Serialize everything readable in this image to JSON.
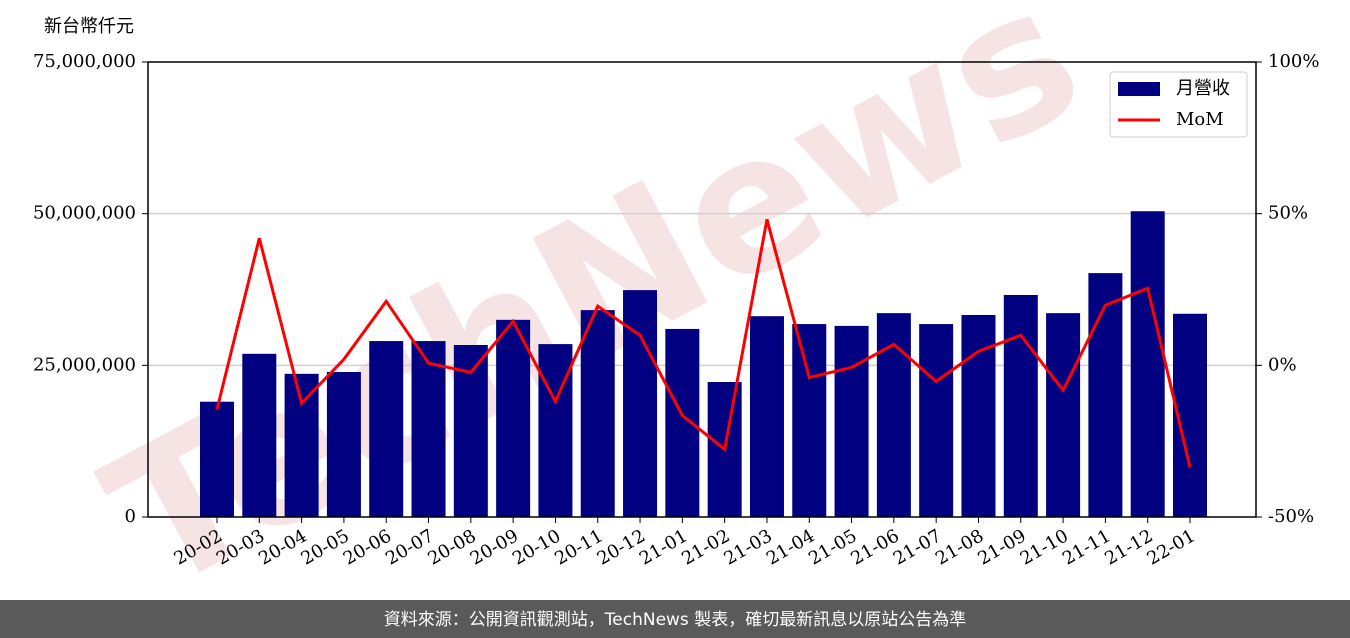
{
  "chart_data": {
    "type": "bar",
    "y_label": "新台幣仟元",
    "watermark": "TechNews",
    "footer": "資料來源：公開資訊觀測站，TechNews 製表，確切最新訊息以原站公告為準",
    "categories": [
      "20-02",
      "20-03",
      "20-04",
      "20-05",
      "20-06",
      "20-07",
      "20-08",
      "20-09",
      "20-10",
      "20-11",
      "20-12",
      "21-01",
      "21-02",
      "21-03",
      "21-04",
      "21-05",
      "21-06",
      "21-07",
      "21-08",
      "21-09",
      "21-10",
      "21-11",
      "21-12",
      "22-01"
    ],
    "series": [
      {
        "name": "月營收",
        "type": "bar",
        "color": "#000080",
        "values": [
          19000000,
          26900000,
          23600000,
          23900000,
          29000000,
          29000000,
          28350000,
          32500000,
          28500000,
          34100000,
          37400000,
          31000000,
          22250000,
          33100000,
          31800000,
          31500000,
          33600000,
          31800000,
          33300000,
          36600000,
          33600000,
          40200000,
          50400000,
          33500000
        ]
      },
      {
        "name": "MoM",
        "type": "line",
        "axis": "y2",
        "color": "#ff0000",
        "values": [
          -14.5,
          41.9,
          -12.5,
          2,
          21.1,
          0.7,
          -2.3,
          14.5,
          -11.9,
          19.5,
          9.9,
          -16.5,
          -27.7,
          48.1,
          -4,
          -0.7,
          6.9,
          -5.3,
          4.6,
          9.9,
          -8.2,
          19.8,
          25.4,
          -33.6
        ]
      }
    ],
    "ylim": [
      0,
      75000000
    ],
    "yticks": [
      0,
      {
        "value": 25000000,
        "label": "25,000,000"
      },
      {
        "value": 50000000,
        "label": "50,000,000"
      },
      {
        "value": 75000000,
        "label": "75,000,000"
      }
    ],
    "y2lim": [
      -50,
      100
    ],
    "y2ticks": [
      {
        "value": -50,
        "label": "-50%"
      },
      {
        "value": 0,
        "label": "0%"
      },
      {
        "value": 50,
        "label": "50%"
      },
      {
        "value": 100,
        "label": "100%"
      }
    ],
    "grid": true,
    "legend": "upper right"
  }
}
